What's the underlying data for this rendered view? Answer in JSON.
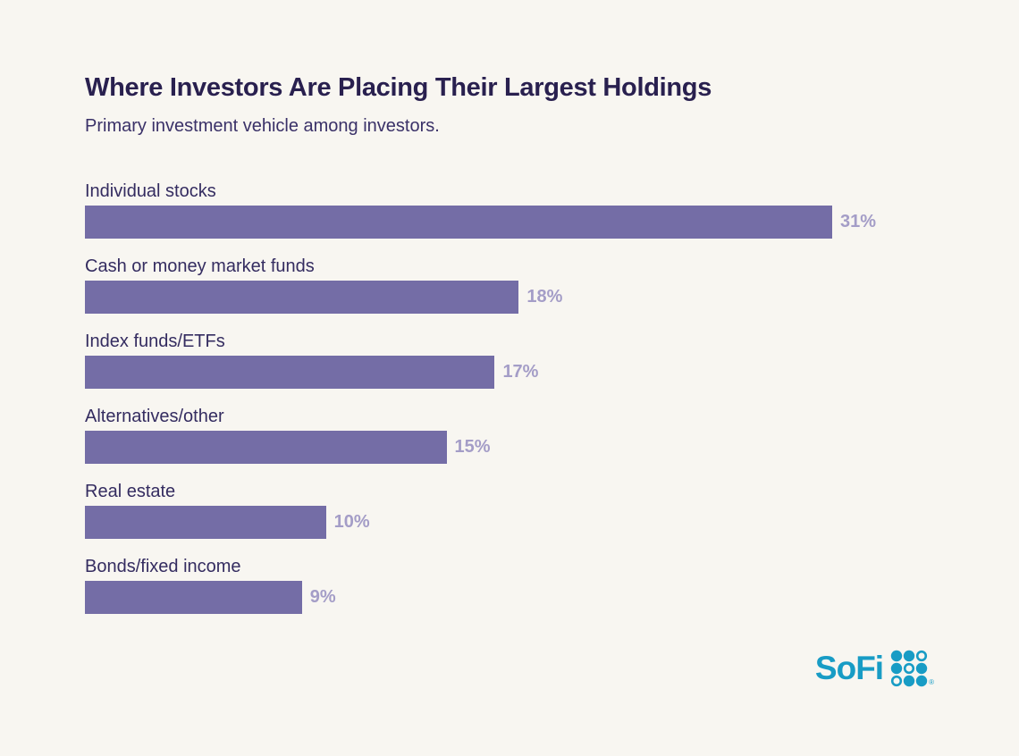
{
  "chart_data": {
    "type": "bar",
    "orientation": "horizontal",
    "title": "Where Investors Are Placing Their Largest Holdings",
    "subtitle": "Primary investment vehicle among investors.",
    "categories": [
      "Individual stocks",
      "Cash or money market funds",
      "Index funds/ETFs",
      "Alternatives/other",
      "Real estate",
      "Bonds/fixed income"
    ],
    "values": [
      31,
      18,
      17,
      15,
      10,
      9
    ],
    "value_labels": [
      "31%",
      "18%",
      "17%",
      "15%",
      "10%",
      "9%"
    ],
    "xlim": [
      0,
      31
    ],
    "grid": false,
    "legend": false,
    "bar_color": "#746da6",
    "value_label_color": "#a49dc7",
    "category_label_color": "#342c60"
  },
  "branding": {
    "logo_text": "SoFi",
    "logo_color": "#189cc5",
    "trademark": "®",
    "dot_grid_pattern": [
      [
        "filled",
        "filled",
        "outlined"
      ],
      [
        "filled",
        "outlined",
        "filled"
      ],
      [
        "outlined",
        "filled",
        "filled"
      ]
    ]
  },
  "colors": {
    "background": "#f8f6f1",
    "title": "#29204f",
    "subtitle": "#3a3168"
  }
}
